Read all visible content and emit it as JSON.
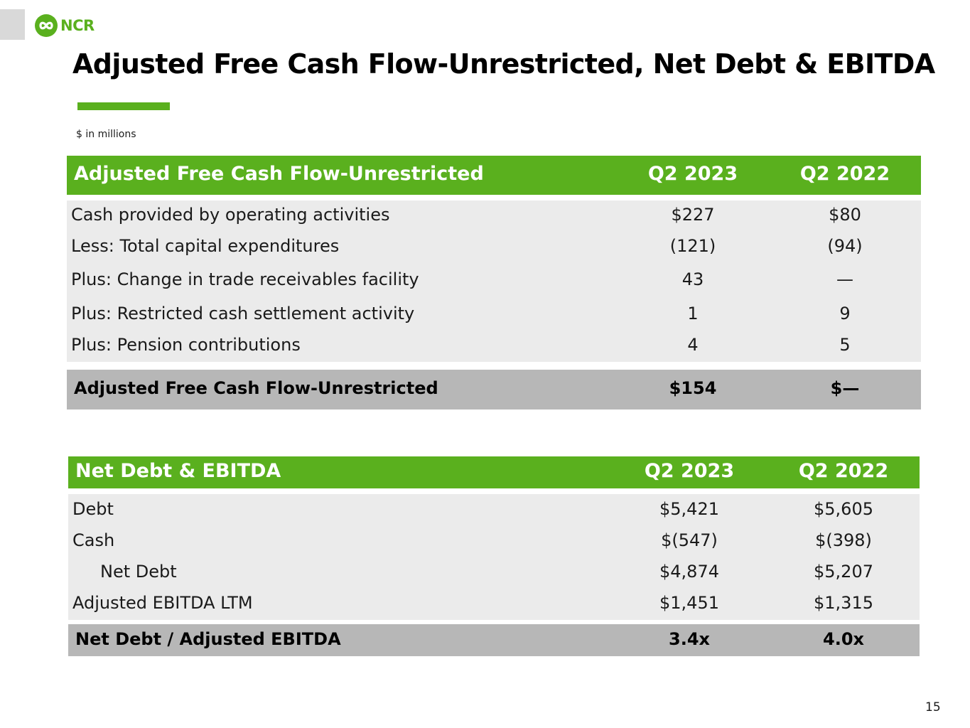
{
  "brand": {
    "logo_text": "NCR",
    "accent_color": "#5ab01e",
    "logo_icon": "ncr-infinity-icon"
  },
  "page": {
    "title": "Adjusted Free Cash Flow-Unrestricted, Net Debt & EBITDA",
    "units_note": "$ in millions",
    "page_number": "15"
  },
  "fcf_table": {
    "header": {
      "label": "Adjusted Free Cash Flow-Unrestricted",
      "col1": "Q2 2023",
      "col2": "Q2 2022"
    },
    "rows": [
      {
        "label": "Cash provided by operating activities",
        "q2_2023": "$227",
        "q2_2022": "$80"
      },
      {
        "label": "Less: Total capital expenditures",
        "q2_2023": "(121)",
        "q2_2022": "(94)"
      },
      {
        "label": "Plus: Change in trade receivables facility",
        "q2_2023": "43",
        "q2_2022": "—"
      },
      {
        "label": "Plus: Restricted cash settlement activity",
        "q2_2023": "1",
        "q2_2022": "9"
      },
      {
        "label": "Plus: Pension contributions",
        "q2_2023": "4",
        "q2_2022": "5"
      }
    ],
    "total": {
      "label": "Adjusted Free Cash Flow-Unrestricted",
      "q2_2023": "$154",
      "q2_2022": "$—"
    }
  },
  "debt_table": {
    "header": {
      "label": "Net Debt & EBITDA",
      "col1": "Q2 2023",
      "col2": "Q2 2022"
    },
    "rows": [
      {
        "label": "Debt",
        "q2_2023": "$5,421",
        "q2_2022": "$5,605"
      },
      {
        "label": "Cash",
        "q2_2023": "$(547)",
        "q2_2022": "$(398)"
      },
      {
        "label": "Net Debt",
        "q2_2023": "$4,874",
        "q2_2022": "$5,207"
      },
      {
        "label": "Adjusted EBITDA LTM",
        "q2_2023": "$1,451",
        "q2_2022": "$1,315"
      }
    ],
    "total": {
      "label": "Net Debt / Adjusted EBITDA",
      "q2_2023": "3.4x",
      "q2_2022": "4.0x"
    }
  }
}
